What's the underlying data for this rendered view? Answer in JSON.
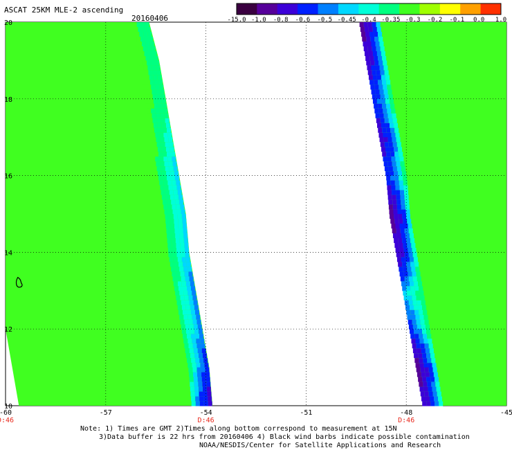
{
  "header": {
    "title": "ASCAT 25KM MLE-2 ascending",
    "date": "20160406"
  },
  "notes": {
    "line1": "Note: 1) Times are GMT 2)Times along bottom correspond to measurement at 15N",
    "line2": "3)Data buffer is 22 hrs from 20160406 4) Black wind barbs indicate possible contamination",
    "line3": "NOAA/NESDIS/Center for Satellite Applications and Research"
  },
  "chart_data": {
    "type": "heatmap",
    "title": "ASCAT 25KM MLE-2 ascending",
    "subtitle": "20160406",
    "xlim": [
      -60,
      -45
    ],
    "ylim": [
      10,
      20
    ],
    "x_ticks": [
      -60,
      -57,
      -54,
      -51,
      -48,
      -45
    ],
    "y_ticks": [
      10,
      12,
      14,
      16,
      18,
      20
    ],
    "grid": true,
    "time_labels": [
      {
        "x": -60,
        "label": "D:46"
      },
      {
        "x": -54,
        "label": "D:46"
      },
      {
        "x": -48,
        "label": "D:46"
      }
    ],
    "time_label_color": "#e8261a",
    "colorbar": {
      "position": "top-right",
      "tick_labels": [
        "-15.0",
        "-1.0",
        "-0.8",
        "-0.6",
        "-0.5",
        "-0.45",
        "-0.4",
        "-0.35",
        "-0.3",
        "-0.2",
        "-0.1",
        "0.0",
        "1.0"
      ],
      "colors": [
        "#3a0040",
        "#56009a",
        "#3c00d8",
        "#0020ff",
        "#0080ff",
        "#00d8ff",
        "#00ffd8",
        "#00ff80",
        "#40ff20",
        "#a0ff00",
        "#ffff00",
        "#ffa000",
        "#ff3000"
      ]
    },
    "swaths": [
      {
        "name": "swath 1",
        "edges": [
          {
            "lat": 20.0,
            "lon_west": -60.0,
            "lon_east": -55.7
          },
          {
            "lat": 19.0,
            "lon_west": -60.0,
            "lon_east": -55.4
          },
          {
            "lat": 18.0,
            "lon_west": -60.0,
            "lon_east": -55.2
          },
          {
            "lat": 17.0,
            "lon_west": -60.0,
            "lon_east": -55.0
          },
          {
            "lat": 16.0,
            "lon_west": -60.0,
            "lon_east": -54.8
          },
          {
            "lat": 15.0,
            "lon_west": -60.0,
            "lon_east": -54.6
          },
          {
            "lat": 14.0,
            "lon_west": -60.0,
            "lon_east": -54.5
          },
          {
            "lat": 13.0,
            "lon_west": -60.0,
            "lon_east": -54.3
          },
          {
            "lat": 12.0,
            "lon_west": -60.0,
            "lon_east": -54.1
          },
          {
            "lat": 11.0,
            "lon_west": -59.8,
            "lon_east": -53.9
          },
          {
            "lat": 10.0,
            "lon_west": -59.6,
            "lon_east": -53.8
          }
        ],
        "values_along_east_edge": [
          -0.35,
          -0.35,
          -0.35,
          -0.4,
          -0.45,
          -0.45,
          -0.45,
          -0.5,
          -0.5,
          -0.6,
          -0.8
        ],
        "interior_value": -0.3
      },
      {
        "name": "swath 2",
        "edges": [
          {
            "lat": 20.0,
            "lon_west": -49.4,
            "lon_east": -45.0
          },
          {
            "lat": 19.0,
            "lon_west": -49.2,
            "lon_east": -45.0
          },
          {
            "lat": 18.0,
            "lon_west": -49.0,
            "lon_east": -45.0
          },
          {
            "lat": 17.0,
            "lon_west": -48.8,
            "lon_east": -45.0
          },
          {
            "lat": 16.0,
            "lon_west": -48.6,
            "lon_east": -45.0
          },
          {
            "lat": 15.0,
            "lon_west": -48.5,
            "lon_east": -45.0
          },
          {
            "lat": 14.0,
            "lon_west": -48.3,
            "lon_east": -45.0
          },
          {
            "lat": 13.0,
            "lon_west": -48.1,
            "lon_east": -45.0
          },
          {
            "lat": 12.0,
            "lon_west": -47.9,
            "lon_east": -45.0
          },
          {
            "lat": 11.0,
            "lon_west": -47.7,
            "lon_east": -45.0
          },
          {
            "lat": 10.0,
            "lon_west": -47.5,
            "lon_east": -45.0
          }
        ],
        "values_along_west_edge": [
          -1.0,
          -0.8,
          -0.6,
          -0.8,
          -0.6,
          -1.0,
          -0.8,
          -0.45,
          -0.6,
          -1.0,
          -0.8
        ],
        "interior_value": -0.3
      }
    ],
    "coastline": {
      "name": "island",
      "lat": 13.2,
      "lon": -59.55
    }
  }
}
